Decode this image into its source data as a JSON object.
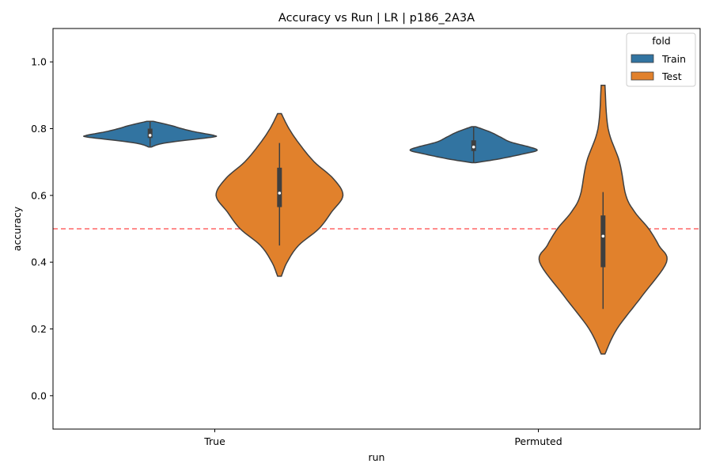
{
  "chart_data": {
    "type": "violin",
    "title": "Accuracy vs Run | LR | p186_2A3A",
    "xlabel": "run",
    "ylabel": "accuracy",
    "categories": [
      "True",
      "Permuted"
    ],
    "ylim": [
      -0.1,
      1.1
    ],
    "yticks": [
      0.0,
      0.2,
      0.4,
      0.6,
      0.8,
      1.0
    ],
    "ytick_labels": [
      "0.0",
      "0.2",
      "0.4",
      "0.6",
      "0.8",
      "1.0"
    ],
    "reference_line": {
      "y": 0.5,
      "color": "#ff0000",
      "style": "dashed"
    },
    "legend": {
      "title": "fold",
      "position": "top-right"
    },
    "series": [
      {
        "name": "Train",
        "color": "#3274a1",
        "stats": [
          {
            "category": "True",
            "min": 0.745,
            "q1": 0.772,
            "median": 0.78,
            "q3": 0.8,
            "max": 0.822,
            "profile": [
              [
                0.745,
                0.02
              ],
              [
                0.755,
                0.18
              ],
              [
                0.765,
                0.55
              ],
              [
                0.775,
                1.0
              ],
              [
                0.78,
                1.0
              ],
              [
                0.79,
                0.72
              ],
              [
                0.8,
                0.5
              ],
              [
                0.81,
                0.32
              ],
              [
                0.822,
                0.05
              ]
            ]
          },
          {
            "category": "Permuted",
            "min": 0.698,
            "q1": 0.733,
            "median": 0.745,
            "q3": 0.765,
            "max": 0.806,
            "profile": [
              [
                0.698,
                0.03
              ],
              [
                0.71,
                0.42
              ],
              [
                0.725,
                0.8
              ],
              [
                0.735,
                1.0
              ],
              [
                0.745,
                0.88
              ],
              [
                0.76,
                0.58
              ],
              [
                0.775,
                0.42
              ],
              [
                0.79,
                0.26
              ],
              [
                0.806,
                0.03
              ]
            ]
          }
        ]
      },
      {
        "name": "Test",
        "color": "#e1812c",
        "stats": [
          {
            "category": "True",
            "min": 0.45,
            "q1": 0.565,
            "median": 0.607,
            "q3": 0.683,
            "max": 0.757,
            "profile": [
              [
                0.358,
                0.03
              ],
              [
                0.4,
                0.12
              ],
              [
                0.45,
                0.3
              ],
              [
                0.5,
                0.62
              ],
              [
                0.55,
                0.82
              ],
              [
                0.6,
                1.0
              ],
              [
                0.65,
                0.85
              ],
              [
                0.7,
                0.55
              ],
              [
                0.75,
                0.33
              ],
              [
                0.8,
                0.15
              ],
              [
                0.845,
                0.03
              ]
            ]
          },
          {
            "category": "Permuted",
            "min": 0.26,
            "q1": 0.385,
            "median": 0.478,
            "q3": 0.54,
            "max": 0.61,
            "profile": [
              [
                0.125,
                0.03
              ],
              [
                0.2,
                0.22
              ],
              [
                0.3,
                0.62
              ],
              [
                0.4,
                1.0
              ],
              [
                0.45,
                0.88
              ],
              [
                0.5,
                0.72
              ],
              [
                0.55,
                0.5
              ],
              [
                0.6,
                0.36
              ],
              [
                0.7,
                0.26
              ],
              [
                0.8,
                0.08
              ],
              [
                0.93,
                0.03
              ]
            ]
          }
        ]
      }
    ]
  }
}
